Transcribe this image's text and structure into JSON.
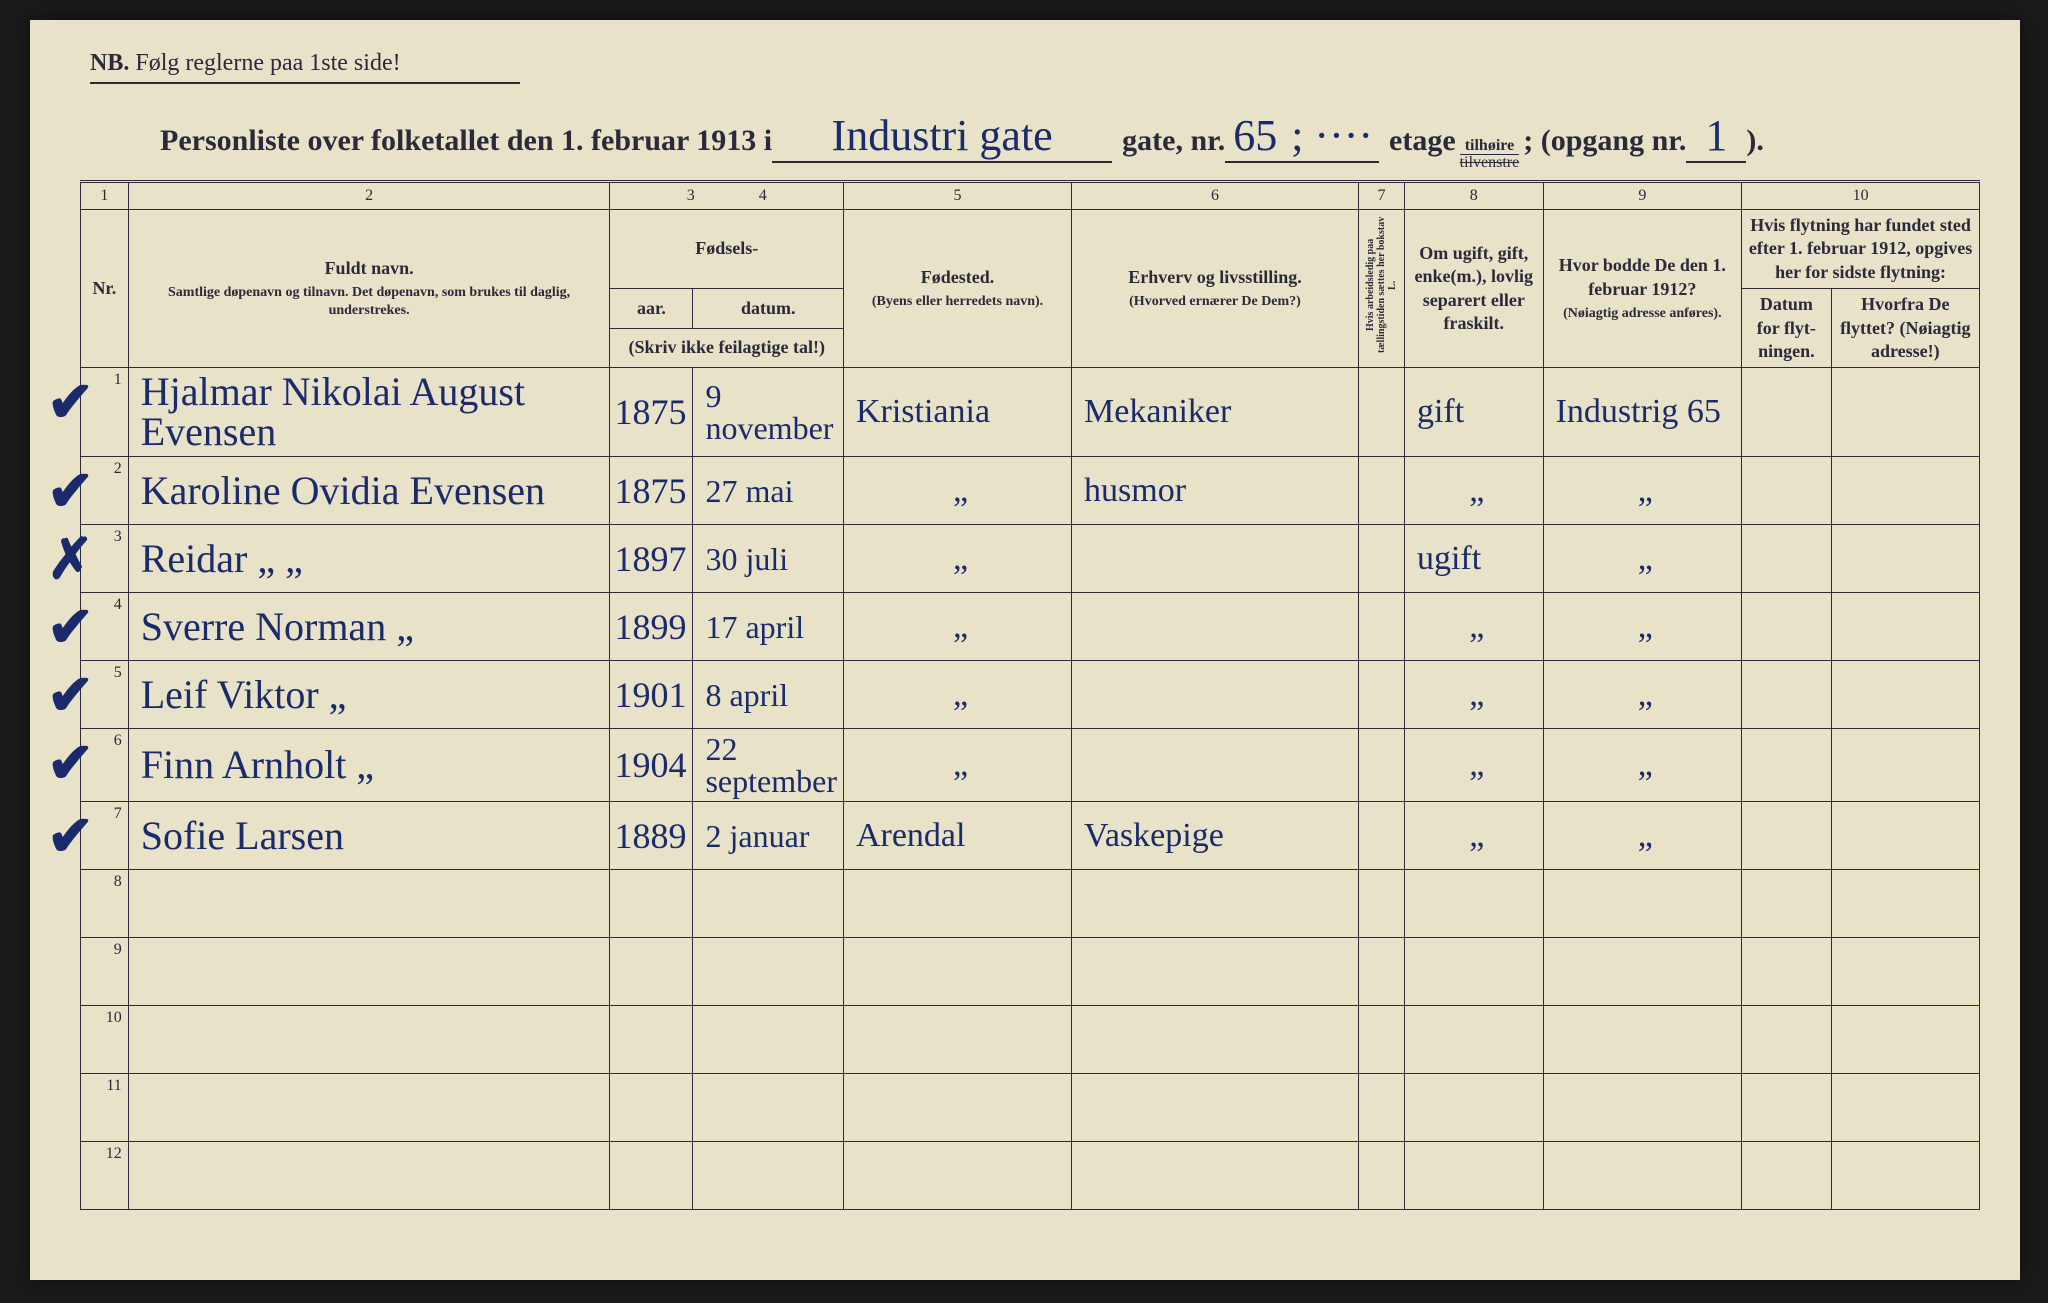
{
  "notice": {
    "nb": "NB.",
    "text": "Følg reglerne paa 1ste side!"
  },
  "title": {
    "prefix": "Personliste over folketallet den 1. februar 1913 i",
    "street": "Industri gate",
    "gate_nr_label": "gate, nr.",
    "gate_nr": "65",
    "sep": "; ····",
    "etage_label": "etage",
    "side_top": "tilhøire",
    "side_bot": "tilvenstre",
    "opgang_label": "; (opgang nr.",
    "opgang_nr": "1",
    "close": ")."
  },
  "headers": {
    "colnums": [
      "1",
      "2",
      "3",
      "4",
      "5",
      "6",
      "7",
      "8",
      "9",
      "10"
    ],
    "nr": "Nr.",
    "name": "Fuldt navn.",
    "name_sub": "Samtlige døpenavn og tilnavn. Det døpenavn, som brukes til daglig, understrekes.",
    "fodsels": "Fødsels-",
    "aar": "aar.",
    "datum": "datum.",
    "aar_sub": "(Skriv ikke feilagtige tal!)",
    "pob": "Fødested.",
    "pob_sub": "(Byens eller herredets navn).",
    "occ": "Erhverv og livsstilling.",
    "occ_sub": "(Hvorved ernærer De Dem?)",
    "col7": "Hvis arbeidsledig paa tællingstiden sættes her bokstav L.",
    "col8": "Om ugift, gift, enke(m.), lovlig separert eller fraskilt.",
    "col9": "Hvor bodde De den 1. februar 1912?",
    "col9_sub": "(Nøiagtig adresse anføres).",
    "col10": "Hvis flytning har fundet sted efter 1. februar 1912, opgives her for sidste flytning:",
    "col10a": "Datum for flyt-ningen.",
    "col10b": "Hvorfra De flyttet? (Nøiagtig adresse!)"
  },
  "rows": [
    {
      "mark": "✔",
      "nr": "1",
      "name": "Hjalmar Nikolai August Evensen",
      "yr": "1875",
      "dt": "9 november",
      "pob": "Kristiania",
      "occ": "Mekaniker",
      "c7": "",
      "c8": "gift",
      "c9": "Industrig 65",
      "c10a": "",
      "c10b": ""
    },
    {
      "mark": "✔",
      "nr": "2",
      "name": "Karoline Ovidia Evensen",
      "yr": "1875",
      "dt": "27 mai",
      "pob": "„",
      "occ": "husmor",
      "c7": "",
      "c8": "„",
      "c9": "„",
      "c10a": "",
      "c10b": ""
    },
    {
      "mark": "✗",
      "nr": "3",
      "name": "Reidar     „   „",
      "yr": "1897",
      "dt": "30 juli",
      "pob": "„",
      "occ": "",
      "c7": "",
      "c8": "ugift",
      "c9": "„",
      "c10a": "",
      "c10b": ""
    },
    {
      "mark": "✔",
      "nr": "4",
      "name": "Sverre Norman „",
      "yr": "1899",
      "dt": "17 april",
      "pob": "„",
      "occ": "",
      "c7": "",
      "c8": "„",
      "c9": "„",
      "c10a": "",
      "c10b": ""
    },
    {
      "mark": "✔",
      "nr": "5",
      "name": "Leif Viktor    „",
      "yr": "1901",
      "dt": "8 april",
      "pob": "„",
      "occ": "",
      "c7": "",
      "c8": "„",
      "c9": "„",
      "c10a": "",
      "c10b": ""
    },
    {
      "mark": "✔",
      "nr": "6",
      "name": "Finn Arnholt  „",
      "yr": "1904",
      "dt": "22 september",
      "pob": "„",
      "occ": "",
      "c7": "",
      "c8": "„",
      "c9": "„",
      "c10a": "",
      "c10b": ""
    },
    {
      "mark": "✔",
      "nr": "7",
      "name": "Sofie Larsen",
      "yr": "1889",
      "dt": "2 januar",
      "pob": "Arendal",
      "occ": "Vaskepige",
      "c7": "",
      "c8": "„",
      "c9": "„",
      "c10a": "",
      "c10b": ""
    },
    {
      "mark": "",
      "nr": "8",
      "name": "",
      "yr": "",
      "dt": "",
      "pob": "",
      "occ": "",
      "c7": "",
      "c8": "",
      "c9": "",
      "c10a": "",
      "c10b": ""
    },
    {
      "mark": "",
      "nr": "9",
      "name": "",
      "yr": "",
      "dt": "",
      "pob": "",
      "occ": "",
      "c7": "",
      "c8": "",
      "c9": "",
      "c10a": "",
      "c10b": ""
    },
    {
      "mark": "",
      "nr": "10",
      "name": "",
      "yr": "",
      "dt": "",
      "pob": "",
      "occ": "",
      "c7": "",
      "c8": "",
      "c9": "",
      "c10a": "",
      "c10b": ""
    },
    {
      "mark": "",
      "nr": "11",
      "name": "",
      "yr": "",
      "dt": "",
      "pob": "",
      "occ": "",
      "c7": "",
      "c8": "",
      "c9": "",
      "c10a": "",
      "c10b": ""
    },
    {
      "mark": "",
      "nr": "12",
      "name": "",
      "yr": "",
      "dt": "",
      "pob": "",
      "occ": "",
      "c7": "",
      "c8": "",
      "c9": "",
      "c10a": "",
      "c10b": ""
    }
  ]
}
